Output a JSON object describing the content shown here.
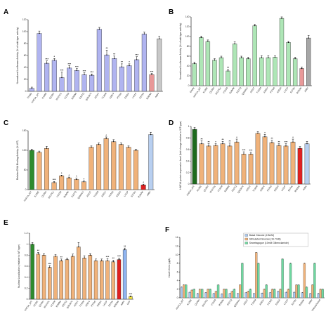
{
  "chart_data": [
    {
      "panel": "A",
      "type": "bar",
      "ylabel": "Normalized Luciferase Activity (% of wild-type activity)",
      "ylim": [
        0,
        120
      ],
      "yticks": [
        0,
        20,
        40,
        60,
        80,
        100,
        120
      ],
      "categories": [
        "Empty",
        "HNF1A_WT",
        "K120E",
        "Q130H",
        "W127Cx",
        "V133M",
        "R200W",
        "E227Q",
        "Q293K/V",
        "A251T",
        "T139M",
        "A281V",
        "P379S",
        "S352A",
        "L411P",
        "S373N",
        "R263W",
        "A98V"
      ],
      "values": [
        5,
        97,
        47,
        52,
        23,
        39,
        35,
        28,
        27,
        104,
        61,
        55,
        41,
        43,
        53,
        96,
        28,
        88
      ],
      "errors": [
        2,
        4,
        4,
        3,
        9,
        4,
        3,
        3,
        2,
        3,
        8,
        4,
        5,
        3,
        5,
        3,
        2,
        4
      ],
      "stars": [
        "",
        "",
        "***",
        "*",
        "***",
        "***",
        "***",
        "***",
        "***",
        "",
        "**",
        "**",
        "**",
        "*",
        "***",
        "",
        "***",
        ""
      ],
      "colors": [
        "#b0b4f0",
        "#b0b4f0",
        "#b0b4f0",
        "#b0b4f0",
        "#b0b4f0",
        "#b0b4f0",
        "#b0b4f0",
        "#b0b4f0",
        "#b0b4f0",
        "#b0b4f0",
        "#b0b4f0",
        "#b0b4f0",
        "#b0b4f0",
        "#b0b4f0",
        "#b0b4f0",
        "#b0b4f0",
        "#e89898",
        "#c8c8c8"
      ]
    },
    {
      "panel": "B",
      "type": "bar",
      "ylabel": "Normalized Luciferase Activity (% of wild-type activity)",
      "ylim": [
        0,
        140
      ],
      "yticks": [
        0,
        20,
        40,
        60,
        80,
        100,
        120,
        140
      ],
      "categories": [
        "Empty",
        "HNF1A_WT",
        "K120E",
        "Q130H",
        "W127Cx",
        "V133M",
        "R200W",
        "E227Q",
        "Q293K/V",
        "A251T",
        "T139M",
        "A281V",
        "P379S",
        "S352A",
        "L411P",
        "S373N",
        "R263W",
        "A98V"
      ],
      "values": [
        45,
        98,
        90,
        52,
        57,
        30,
        85,
        57,
        55,
        122,
        57,
        57,
        58,
        137,
        88,
        55,
        35,
        97
      ],
      "errors": [
        3,
        3,
        3,
        3,
        3,
        3,
        4,
        3,
        3,
        3,
        4,
        4,
        3,
        3,
        2,
        3,
        3,
        5
      ],
      "stars": [
        "",
        "",
        "",
        "",
        "",
        "**",
        "",
        "",
        "",
        "",
        "",
        "",
        "",
        "",
        "",
        "",
        "",
        ""
      ],
      "colors": [
        "#aee6b6",
        "#aee6b6",
        "#aee6b6",
        "#aee6b6",
        "#aee6b6",
        "#aee6b6",
        "#aee6b6",
        "#aee6b6",
        "#aee6b6",
        "#aee6b6",
        "#aee6b6",
        "#aee6b6",
        "#aee6b6",
        "#aee6b6",
        "#aee6b6",
        "#aee6b6",
        "#e89898",
        "#a6a6a6"
      ]
    },
    {
      "panel": "C",
      "type": "bar",
      "ylabel": "Relative DNA Binding Activity (% WT)",
      "ylim": [
        0,
        150
      ],
      "yticks": [
        0,
        50,
        100,
        150
      ],
      "categories": [
        "HNF1A_WT",
        "K120E",
        "Q130H",
        "W127Cx",
        "V133M",
        "R200W",
        "E227Q",
        "Q293K/V",
        "A251T",
        "T139M",
        "A281V",
        "P379S",
        "S352A",
        "L411P",
        "S373N",
        "R263W",
        "A98V"
      ],
      "values": [
        100,
        95,
        105,
        18,
        35,
        30,
        26,
        20,
        108,
        115,
        130,
        122,
        115,
        108,
        100,
        12,
        140
      ],
      "errors": [
        3,
        3,
        5,
        3,
        2,
        2,
        3,
        2,
        3,
        4,
        4,
        5,
        4,
        3,
        3,
        2,
        6
      ],
      "stars": [
        "",
        "",
        "",
        "***",
        "*",
        "*",
        "*",
        "*",
        "",
        "",
        "*",
        "",
        "",
        "",
        "",
        "*",
        ""
      ],
      "colors": [
        "#2e8b2e",
        "#f0b27a",
        "#f0b27a",
        "#f0b27a",
        "#f0b27a",
        "#f0b27a",
        "#f0b27a",
        "#f0b27a",
        "#f0b27a",
        "#f0b27a",
        "#f0b27a",
        "#f0b27a",
        "#f0b27a",
        "#f0b27a",
        "#f0b27a",
        "#e02020",
        "#b8cff0"
      ]
    },
    {
      "panel": "D",
      "type": "bar",
      "ylabel": "HNF1A protein expression level (fold change relative to WT type)",
      "ylim": [
        0,
        1.0
      ],
      "yticks": [
        0,
        0.2,
        0.4,
        0.6,
        0.8,
        1.0
      ],
      "categories": [
        "HNF1A_WT",
        "K120E",
        "Q130H",
        "W127Cx",
        "V133M",
        "R200W",
        "E227Q",
        "Q293K/V",
        "A251T",
        "T139M",
        "A281V",
        "P379S",
        "S352A",
        "L411P",
        "S373N",
        "R263W",
        "A98V"
      ],
      "values": [
        0.95,
        0.7,
        0.66,
        0.67,
        0.7,
        0.66,
        0.73,
        0.52,
        0.52,
        0.88,
        0.82,
        0.72,
        0.67,
        0.66,
        0.73,
        0.62,
        0.7
      ],
      "errors": [
        0.03,
        0.05,
        0.04,
        0.03,
        0.04,
        0.05,
        0.05,
        0.04,
        0.03,
        0.03,
        0.04,
        0.04,
        0.03,
        0.04,
        0.05,
        0.03,
        0.04
      ],
      "stars": [
        "",
        "**",
        "**",
        "*",
        "**",
        "**",
        "*",
        "***",
        "***",
        "",
        "*",
        "**",
        "**",
        "***",
        "*",
        "",
        ""
      ],
      "colors": [
        "#1e6b1e",
        "#f0b27a",
        "#f0b27a",
        "#f0b27a",
        "#f0b27a",
        "#f0b27a",
        "#f0b27a",
        "#f0b27a",
        "#f0b27a",
        "#f0b27a",
        "#f0b27a",
        "#f0b27a",
        "#f0b27a",
        "#f0b27a",
        "#f0b27a",
        "#e02020",
        "#b8cff0"
      ]
    },
    {
      "panel": "E",
      "type": "bar",
      "ylabel": "Nuclear Localization (relative to WT type)",
      "ylim": [
        0,
        1.2
      ],
      "yticks": [
        0,
        0.2,
        0.4,
        0.6,
        0.8,
        1.0,
        1.2
      ],
      "categories": [
        "HNF1A_WT",
        "K120E",
        "Q130H",
        "W127Cx",
        "V133M",
        "R200W",
        "E227Q",
        "Q293K/V",
        "A251T",
        "T139M",
        "A281V",
        "P379S",
        "S352A",
        "L411P",
        "S373N",
        "R263W",
        "A98V",
        "GFP"
      ],
      "values": [
        1.0,
        0.82,
        0.8,
        0.58,
        0.78,
        0.7,
        0.72,
        0.78,
        0.95,
        0.75,
        0.8,
        0.7,
        0.7,
        0.7,
        0.68,
        0.72,
        0.9,
        0.05
      ],
      "errors": [
        0.03,
        0.03,
        0.03,
        0.03,
        0.03,
        0.03,
        0.03,
        0.04,
        0.08,
        0.04,
        0.03,
        0.03,
        0.03,
        0.04,
        0.03,
        0.03,
        0.03,
        0.01
      ],
      "stars": [
        "",
        "**",
        "",
        "***",
        "",
        "**",
        "",
        "",
        "",
        "",
        "",
        "",
        "",
        "***",
        "**",
        "***",
        "**",
        "***"
      ],
      "colors": [
        "#2e8b2e",
        "#f0b27a",
        "#f0b27a",
        "#f0b27a",
        "#f0b27a",
        "#f0b27a",
        "#f0b27a",
        "#f0b27a",
        "#f0b27a",
        "#f0b27a",
        "#f0b27a",
        "#f0b27a",
        "#f0b27a",
        "#f0b27a",
        "#f0b27a",
        "#e02020",
        "#8fb4f0",
        "#f0e040"
      ]
    },
    {
      "panel": "F",
      "type": "bar",
      "ylabel": "Insulin Conc (μg/L)",
      "ylim": [
        0,
        14
      ],
      "yticks": [
        0,
        2,
        4,
        6,
        8,
        10,
        12,
        14
      ],
      "categories": [
        "HNF1A_WT",
        "K120E",
        "Q130H",
        "W127Cx",
        "V133M",
        "R200W",
        "E227Q",
        "Q293K/V",
        "A251T",
        "T139M",
        "A281V",
        "P379S",
        "S352A",
        "L411P",
        "S373N",
        "R263W",
        "A98V",
        "Untransfected"
      ],
      "legend": [
        "Basal Glucose (2.8mM)",
        "Stimulated Glucose (16.7mM)",
        "Secretagogue (10mM Glibenclamide)"
      ],
      "legend_position": "top-right",
      "series": [
        {
          "name": "Basal Glucose (2.8mM)",
          "color": "#a8c8f0",
          "values": [
            2.5,
            1.3,
            1.0,
            1.2,
            1.0,
            0.9,
            1.0,
            1.0,
            1.2,
            1.0,
            1.1,
            1.2,
            1.5,
            1.3,
            1.3,
            1.2,
            1.0,
            1.0
          ]
        },
        {
          "name": "Stimulated Glucose (16.7mM)",
          "color": "#f0b27a",
          "values": [
            3.0,
            1.8,
            2.0,
            2.0,
            1.5,
            2.0,
            1.5,
            3.0,
            1.5,
            10.5,
            2.0,
            2.0,
            2.0,
            2.0,
            3.0,
            8.0,
            3.0,
            2.0
          ]
        },
        {
          "name": "Secretagogue (10mM Glibenclamide)",
          "color": "#6ed8a0",
          "values": [
            3.0,
            2.0,
            2.0,
            2.0,
            3.0,
            2.0,
            2.0,
            8.0,
            2.0,
            8.0,
            3.0,
            2.0,
            9.0,
            8.0,
            3.0,
            2.5,
            8.0,
            2.0
          ]
        }
      ]
    }
  ]
}
